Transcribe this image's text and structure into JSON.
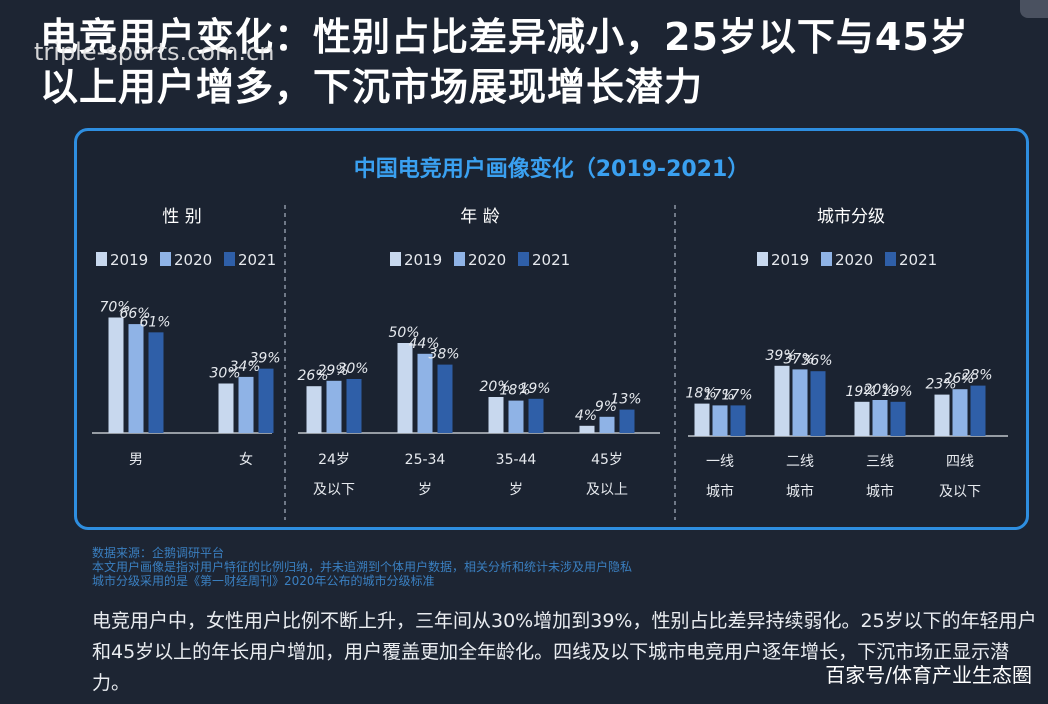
{
  "headline": "电竞用户变化：性别占比差异减小，25岁以下与45岁以上用户增多，下沉市场展现增长潜力",
  "watermark": "triple-sports.com.cn",
  "panel_title": "中国电竞用户画像变化（2019-2021）",
  "colors": {
    "2019": "#c8d8ee",
    "2020": "#8fb3e6",
    "2021": "#2f5fa8",
    "border": "#2e8ee0",
    "title": "#3aa0f0"
  },
  "chart_data": [
    {
      "type": "bar",
      "title": "性 别",
      "categories": [
        [
          "男"
        ],
        [
          "女"
        ]
      ],
      "series": [
        {
          "name": "2019",
          "values": [
            70,
            30
          ]
        },
        {
          "name": "2020",
          "values": [
            66,
            34
          ]
        },
        {
          "name": "2021",
          "values": [
            61,
            39
          ]
        }
      ],
      "unit": "%",
      "legend": "top",
      "grid": false
    },
    {
      "type": "bar",
      "title": "年 龄",
      "categories": [
        [
          "24岁",
          "及以下"
        ],
        [
          "25-34",
          "岁"
        ],
        [
          "35-44",
          "岁"
        ],
        [
          "45岁",
          "及以上"
        ]
      ],
      "series": [
        {
          "name": "2019",
          "values": [
            26,
            50,
            20,
            4
          ]
        },
        {
          "name": "2020",
          "values": [
            29,
            44,
            18,
            9
          ]
        },
        {
          "name": "2021",
          "values": [
            30,
            38,
            19,
            13
          ]
        }
      ],
      "unit": "%",
      "legend": "top",
      "grid": false
    },
    {
      "type": "bar",
      "title": "城市分级",
      "categories": [
        [
          "一线",
          "城市"
        ],
        [
          "二线",
          "城市"
        ],
        [
          "三线",
          "城市"
        ],
        [
          "四线",
          "及以下"
        ]
      ],
      "series": [
        {
          "name": "2019",
          "values": [
            18,
            39,
            19,
            23
          ]
        },
        {
          "name": "2020",
          "values": [
            17,
            37,
            20,
            26
          ]
        },
        {
          "name": "2021",
          "values": [
            17,
            36,
            19,
            28
          ]
        }
      ],
      "unit": "%",
      "legend": "top",
      "grid": false
    }
  ],
  "source_lines": [
    "数据来源：企鹅调研平台",
    "本文用户画像是指对用户特征的比例归纳，并未追溯到个体用户数据，相关分析和统计未涉及用户隐私",
    "城市分级采用的是《第一财经周刊》2020年公布的城市分级标准"
  ],
  "summary": "电竞用户中，女性用户比例不断上升，三年间从30%增加到39%，性别占比差异持续弱化。25岁以下的年轻用户和45岁以上的年长用户增加，用户覆盖更加全年龄化。四线及以下城市电竞用户逐年增长，下沉市场正显示潜力。",
  "credit": "百家号/体育产业生态圈"
}
